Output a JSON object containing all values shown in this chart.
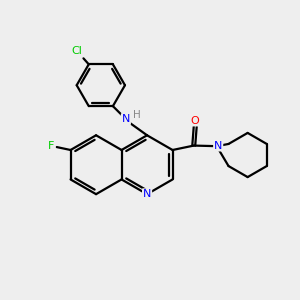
{
  "bg_color": "#eeeeee",
  "bond_color": "#000000",
  "atom_colors": {
    "N": "#0000ff",
    "O": "#ff0000",
    "F": "#00cc00",
    "Cl": "#00cc00",
    "H": "#888888",
    "C": "#000000"
  }
}
